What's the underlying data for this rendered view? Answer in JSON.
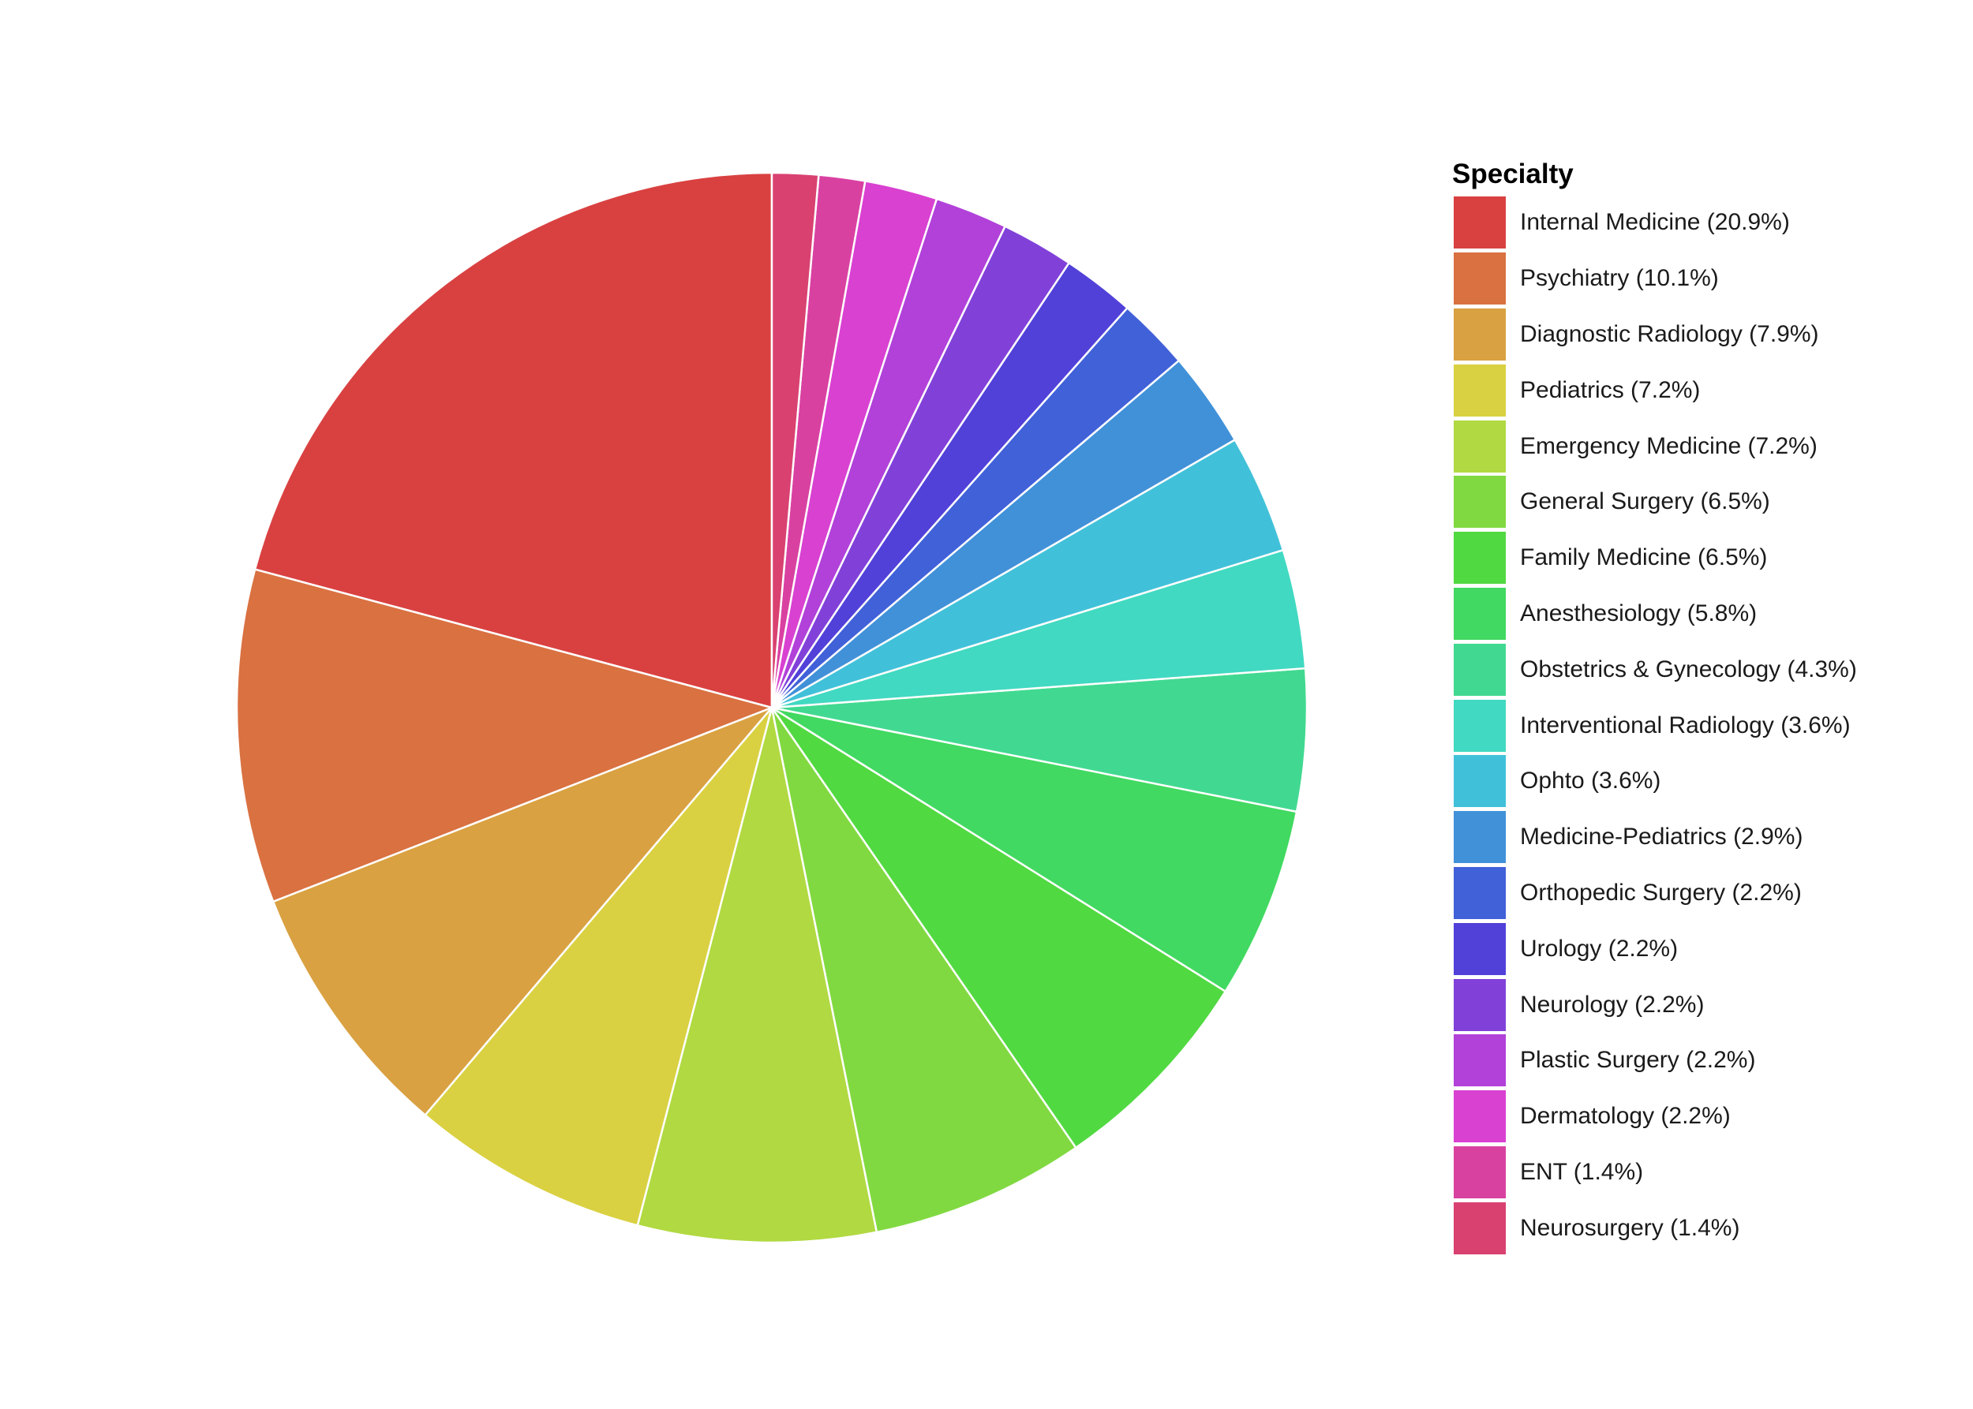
{
  "chart_data": {
    "type": "pie",
    "legend_title": "Specialty",
    "legend_position": "right",
    "start_angle": "12 o'clock",
    "direction": "counterclockwise",
    "slices": [
      {
        "label": "Internal Medicine (20.9%)",
        "value": 20.9,
        "color": "#D94141"
      },
      {
        "label": "Psychiatry (10.1%)",
        "value": 10.1,
        "color": "#D97141"
      },
      {
        "label": "Diagnostic Radiology (7.9%)",
        "value": 7.9,
        "color": "#D9A141"
      },
      {
        "label": "Pediatrics (7.2%)",
        "value": 7.2,
        "color": "#D9D141"
      },
      {
        "label": "Emergency Medicine (7.2%)",
        "value": 7.2,
        "color": "#B1D941"
      },
      {
        "label": "General Surgery (6.5%)",
        "value": 6.5,
        "color": "#81D941"
      },
      {
        "label": "Family Medicine (6.5%)",
        "value": 6.5,
        "color": "#51D941"
      },
      {
        "label": "Anesthesiology (5.8%)",
        "value": 5.8,
        "color": "#41D961"
      },
      {
        "label": "Obstetrics & Gynecology (4.3%)",
        "value": 4.3,
        "color": "#41D991"
      },
      {
        "label": "Interventional Radiology (3.6%)",
        "value": 3.6,
        "color": "#41D9C1"
      },
      {
        "label": "Ophto (3.6%)",
        "value": 3.6,
        "color": "#41C1D9"
      },
      {
        "label": "Medicine-Pediatrics (2.9%)",
        "value": 2.9,
        "color": "#4191D9"
      },
      {
        "label": "Orthopedic Surgery (2.2%)",
        "value": 2.2,
        "color": "#4161D9"
      },
      {
        "label": "Urology (2.2%)",
        "value": 2.2,
        "color": "#5141D9"
      },
      {
        "label": "Neurology (2.2%)",
        "value": 2.2,
        "color": "#8141D9"
      },
      {
        "label": "Plastic Surgery (2.2%)",
        "value": 2.2,
        "color": "#B141D9"
      },
      {
        "label": "Dermatology (2.2%)",
        "value": 2.2,
        "color": "#D941D1"
      },
      {
        "label": "ENT (1.4%)",
        "value": 1.4,
        "color": "#D941A1"
      },
      {
        "label": "Neurosurgery (1.4%)",
        "value": 1.4,
        "color": "#D94171"
      }
    ]
  }
}
